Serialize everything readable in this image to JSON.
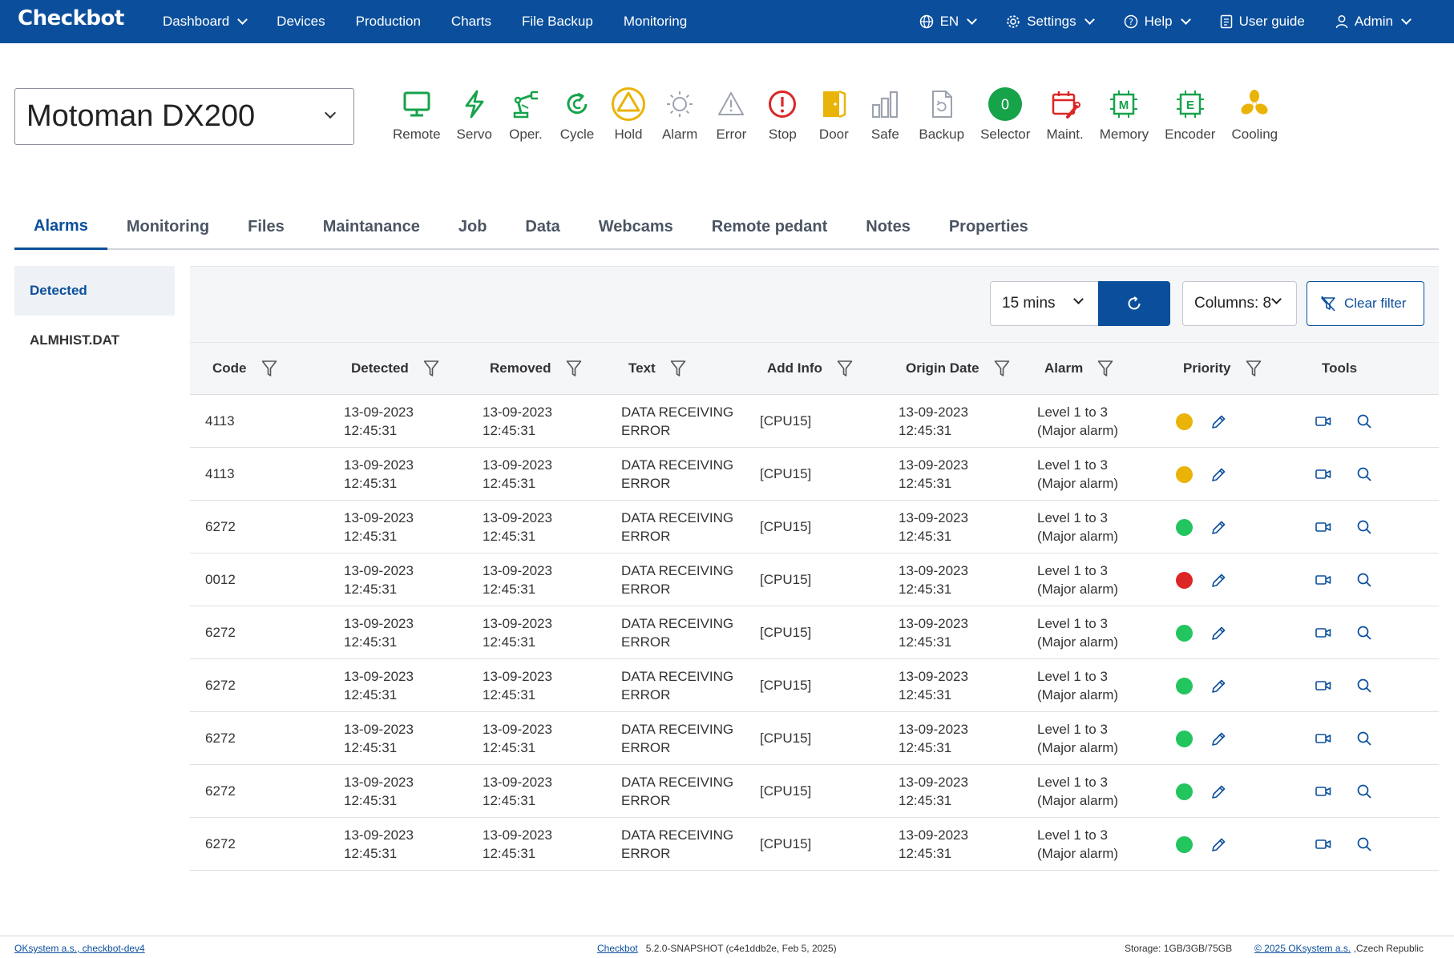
{
  "app": {
    "logo": "Checkbot"
  },
  "nav": {
    "dashboard": "Dashboard",
    "devices": "Devices",
    "production": "Production",
    "charts": "Charts",
    "file_backup": "File Backup",
    "monitoring": "Monitoring",
    "language": "EN",
    "settings": "Settings",
    "help": "Help",
    "user_guide": "User guide",
    "admin": "Admin"
  },
  "device": {
    "selected": "Motoman DX200"
  },
  "status_icons": [
    {
      "label": "Remote",
      "icon": "monitor-icon",
      "color": "#16a34a"
    },
    {
      "label": "Servo",
      "icon": "lightning-icon",
      "color": "#16a34a"
    },
    {
      "label": "Oper.",
      "icon": "robot-arm-icon",
      "color": "#16a34a"
    },
    {
      "label": "Cycle",
      "icon": "cycle-icon",
      "color": "#16a34a"
    },
    {
      "label": "Hold",
      "icon": "hold-triangle-icon",
      "color": "#eab308"
    },
    {
      "label": "Alarm",
      "icon": "alarm-sun-icon",
      "color": "#9ca3af"
    },
    {
      "label": "Error",
      "icon": "warning-icon",
      "color": "#9ca3af"
    },
    {
      "label": "Stop",
      "icon": "stop-icon",
      "color": "#dc2626"
    },
    {
      "label": "Door",
      "icon": "door-icon",
      "color": "#eab308"
    },
    {
      "label": "Safe",
      "icon": "safe-bars-icon",
      "color": "#9ca3af"
    },
    {
      "label": "Backup",
      "icon": "backup-file-icon",
      "color": "#9ca3af"
    },
    {
      "label": "Selector",
      "icon": "selector-icon",
      "color": "#16a34a",
      "value": "0"
    },
    {
      "label": "Maint.",
      "icon": "maintenance-calendar-icon",
      "color": "#dc2626"
    },
    {
      "label": "Memory",
      "icon": "memory-icon",
      "color": "#16a34a"
    },
    {
      "label": "Encoder",
      "icon": "encoder-icon",
      "color": "#16a34a"
    },
    {
      "label": "Cooling",
      "icon": "cooling-fan-icon",
      "color": "#eab308"
    }
  ],
  "tabs": [
    "Alarms",
    "Monitoring",
    "Files",
    "Maintanance",
    "Job",
    "Data",
    "Webcams",
    "Remote pedant",
    "Notes",
    "Properties"
  ],
  "sidebar": {
    "items": [
      "Detected",
      "ALMHIST.DAT"
    ]
  },
  "toolbar": {
    "interval": "15 mins",
    "columns": "Columns: 8",
    "clear_filter": "Clear filter"
  },
  "table": {
    "headers": [
      "Code",
      "Detected",
      "Removed",
      "Text",
      "Add Info",
      "Origin Date",
      "Alarm",
      "Priority",
      "Tools"
    ],
    "rows": [
      {
        "code": "4113",
        "detected": [
          "13-09-2023",
          "12:45:31"
        ],
        "removed": [
          "13-09-2023",
          "12:45:31"
        ],
        "text": [
          "DATA RECEIVING",
          "ERROR"
        ],
        "info": "[CPU15]",
        "origin": [
          "13-09-2023",
          "12:45:31"
        ],
        "alarm": [
          "Level 1 to 3",
          "(Major alarm)"
        ],
        "priority": "#eab308"
      },
      {
        "code": "4113",
        "detected": [
          "13-09-2023",
          "12:45:31"
        ],
        "removed": [
          "13-09-2023",
          "12:45:31"
        ],
        "text": [
          "DATA RECEIVING",
          "ERROR"
        ],
        "info": "[CPU15]",
        "origin": [
          "13-09-2023",
          "12:45:31"
        ],
        "alarm": [
          "Level 1 to 3",
          "(Major alarm)"
        ],
        "priority": "#eab308"
      },
      {
        "code": "6272",
        "detected": [
          "13-09-2023",
          "12:45:31"
        ],
        "removed": [
          "13-09-2023",
          "12:45:31"
        ],
        "text": [
          "DATA RECEIVING",
          "ERROR"
        ],
        "info": "[CPU15]",
        "origin": [
          "13-09-2023",
          "12:45:31"
        ],
        "alarm": [
          "Level 1 to 3",
          "(Major alarm)"
        ],
        "priority": "#22c55e"
      },
      {
        "code": "0012",
        "detected": [
          "13-09-2023",
          "12:45:31"
        ],
        "removed": [
          "13-09-2023",
          "12:45:31"
        ],
        "text": [
          "DATA RECEIVING",
          "ERROR"
        ],
        "info": "[CPU15]",
        "origin": [
          "13-09-2023",
          "12:45:31"
        ],
        "alarm": [
          "Level 1 to 3",
          "(Major alarm)"
        ],
        "priority": "#dc2626"
      },
      {
        "code": "6272",
        "detected": [
          "13-09-2023",
          "12:45:31"
        ],
        "removed": [
          "13-09-2023",
          "12:45:31"
        ],
        "text": [
          "DATA RECEIVING",
          "ERROR"
        ],
        "info": "[CPU15]",
        "origin": [
          "13-09-2023",
          "12:45:31"
        ],
        "alarm": [
          "Level 1 to 3",
          "(Major alarm)"
        ],
        "priority": "#22c55e"
      },
      {
        "code": "6272",
        "detected": [
          "13-09-2023",
          "12:45:31"
        ],
        "removed": [
          "13-09-2023",
          "12:45:31"
        ],
        "text": [
          "DATA RECEIVING",
          "ERROR"
        ],
        "info": "[CPU15]",
        "origin": [
          "13-09-2023",
          "12:45:31"
        ],
        "alarm": [
          "Level 1 to 3",
          "(Major alarm)"
        ],
        "priority": "#22c55e"
      },
      {
        "code": "6272",
        "detected": [
          "13-09-2023",
          "12:45:31"
        ],
        "removed": [
          "13-09-2023",
          "12:45:31"
        ],
        "text": [
          "DATA RECEIVING",
          "ERROR"
        ],
        "info": "[CPU15]",
        "origin": [
          "13-09-2023",
          "12:45:31"
        ],
        "alarm": [
          "Level 1 to 3",
          "(Major alarm)"
        ],
        "priority": "#22c55e"
      },
      {
        "code": "6272",
        "detected": [
          "13-09-2023",
          "12:45:31"
        ],
        "removed": [
          "13-09-2023",
          "12:45:31"
        ],
        "text": [
          "DATA RECEIVING",
          "ERROR"
        ],
        "info": "[CPU15]",
        "origin": [
          "13-09-2023",
          "12:45:31"
        ],
        "alarm": [
          "Level 1 to 3",
          "(Major alarm)"
        ],
        "priority": "#22c55e"
      },
      {
        "code": "6272",
        "detected": [
          "13-09-2023",
          "12:45:31"
        ],
        "removed": [
          "13-09-2023",
          "12:45:31"
        ],
        "text": [
          "DATA RECEIVING",
          "ERROR"
        ],
        "info": "[CPU15]",
        "origin": [
          "13-09-2023",
          "12:45:31"
        ],
        "alarm": [
          "Level 1 to 3",
          "(Major alarm)"
        ],
        "priority": "#22c55e"
      }
    ]
  },
  "footer": {
    "company": "OKsystem a.s., checkbot-dev4",
    "product": "Checkbot",
    "version": "5.2.0-SNAPSHOT (c4e1ddb2e, Feb 5, 2025)",
    "storage": "Storage: 1GB/3GB/75GB",
    "copyright": "© 2025 OKsystem a.s.",
    "country": ",Czech Republic"
  },
  "colors": {
    "brand": "#0b4f9c",
    "ok": "#16a34a",
    "warn": "#eab308",
    "error": "#dc2626",
    "inactive": "#9ca3af"
  }
}
